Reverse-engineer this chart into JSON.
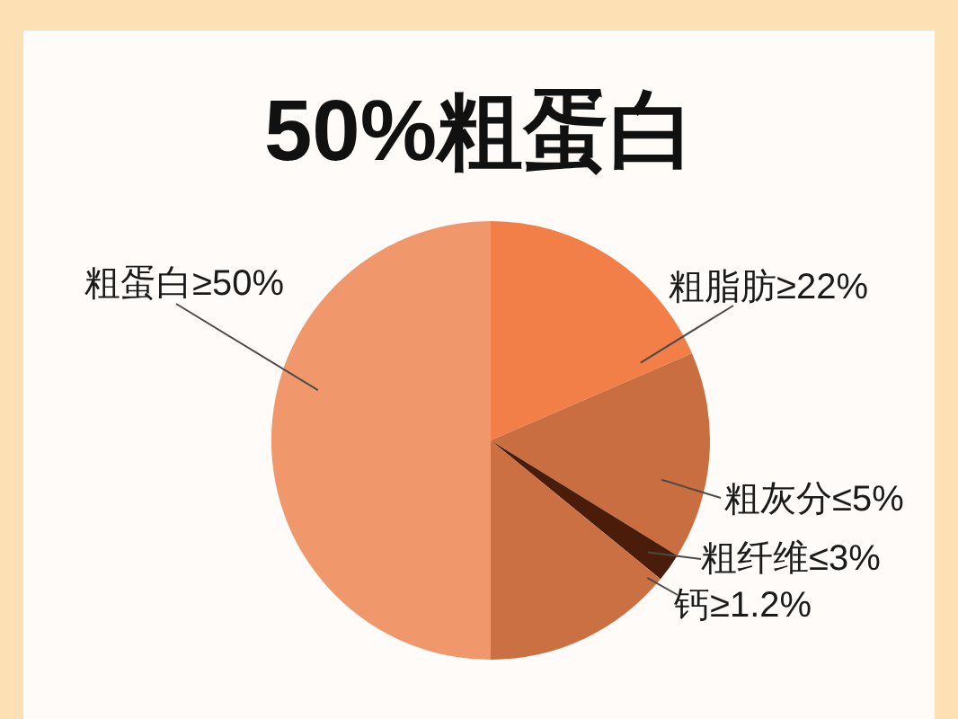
{
  "chart_data": {
    "type": "pie",
    "title": "50%粗蛋白",
    "categories": [
      "粗蛋白≥50%",
      "粗脂肪≥22%",
      "粗灰分≤5%",
      "粗纤维≤3%",
      "钙≥1.2%"
    ],
    "values": [
      50,
      18.5,
      15.3,
      2.1,
      14.1
    ],
    "colors": [
      "#f0986b",
      "#f37f48",
      "#c96e41",
      "#4a1d0a",
      "#cb7043"
    ]
  }
}
